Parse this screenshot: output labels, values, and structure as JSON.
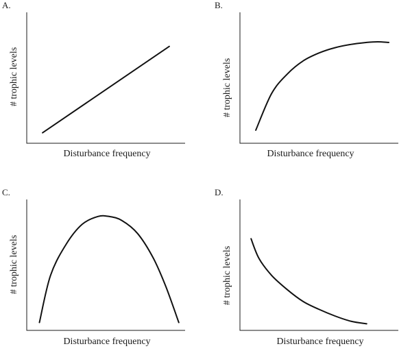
{
  "chart_data": [
    {
      "panel": "A.",
      "type": "line",
      "xlabel": "Disturbance frequency",
      "ylabel": "# trophic levels",
      "xlim": [
        0,
        1
      ],
      "ylim": [
        0,
        1
      ],
      "shape": "increasing linear",
      "series": [
        {
          "x": [
            0.1,
            0.9
          ],
          "y": [
            0.08,
            0.74
          ]
        }
      ]
    },
    {
      "panel": "B.",
      "type": "line",
      "xlabel": "Disturbance frequency",
      "ylabel": "# trophic levels",
      "xlim": [
        0,
        1
      ],
      "ylim": [
        0,
        1
      ],
      "shape": "increasing, saturating",
      "series": [
        {
          "x": [
            0.1,
            0.2,
            0.3,
            0.4,
            0.5,
            0.6,
            0.7,
            0.8,
            0.87,
            0.94
          ],
          "y": [
            0.1,
            0.38,
            0.53,
            0.63,
            0.69,
            0.73,
            0.755,
            0.77,
            0.775,
            0.77
          ]
        }
      ]
    },
    {
      "panel": "C.",
      "type": "line",
      "xlabel": "Disturbance frequency",
      "ylabel": "# trophic levels",
      "xlim": [
        0,
        1
      ],
      "ylim": [
        0,
        1
      ],
      "shape": "hump-shaped (peak at intermediate frequency)",
      "series": [
        {
          "x": [
            0.08,
            0.15,
            0.25,
            0.35,
            0.45,
            0.52,
            0.6,
            0.7,
            0.8,
            0.88,
            0.96
          ],
          "y": [
            0.06,
            0.42,
            0.66,
            0.81,
            0.87,
            0.87,
            0.84,
            0.74,
            0.55,
            0.33,
            0.06
          ]
        }
      ]
    },
    {
      "panel": "D.",
      "type": "line",
      "xlabel": "Disturbance frequency",
      "ylabel": "# trophic levels",
      "xlim": [
        0,
        1
      ],
      "ylim": [
        0,
        1
      ],
      "shape": "decreasing, decelerating",
      "series": [
        {
          "x": [
            0.07,
            0.12,
            0.2,
            0.3,
            0.4,
            0.5,
            0.6,
            0.7,
            0.8
          ],
          "y": [
            0.7,
            0.55,
            0.42,
            0.31,
            0.22,
            0.16,
            0.11,
            0.07,
            0.05
          ]
        }
      ]
    }
  ]
}
